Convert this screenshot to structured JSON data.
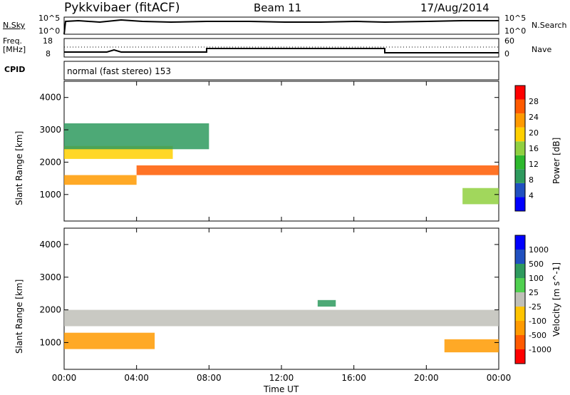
{
  "header": {
    "station": "Pykkvibaer (fitACF)",
    "beam": "Beam 11",
    "date": "17/Aug/2014"
  },
  "nsky_panel": {
    "label": "N.Sky",
    "tick_high": "10^5",
    "tick_low": "10^0",
    "right_label": "N.Search",
    "right_tick_high": "10^5",
    "right_tick_low": "10^0"
  },
  "freq_panel": {
    "label_line1": "Freq.",
    "label_line2": "[MHz]",
    "tick_high": "18",
    "tick_low": "8",
    "right_label": "Nave",
    "right_tick_high": "60",
    "right_tick_low": "0"
  },
  "cpid_panel": {
    "label": "CPID",
    "mode": "normal (fast stereo) 153"
  },
  "colors": {
    "colorbar_power": [
      "#0000ff",
      "#2050c0",
      "#2e9a5e",
      "#2db82d",
      "#90d040",
      "#ffd000",
      "#ff9a00",
      "#ff5a00",
      "#ff0000"
    ],
    "colorbar_velocity": [
      "#ff0000",
      "#ff5a00",
      "#ff9a00",
      "#ffc400",
      "#c0c0b8",
      "#50d050",
      "#2e9a5e",
      "#2050c0",
      "#0000ff"
    ]
  },
  "chart_data": [
    {
      "type": "heatmap",
      "name": "power",
      "ylabel": "Slant Range [km]",
      "ylim": [
        180,
        4500
      ],
      "yticks": [
        "1000",
        "2000",
        "3000",
        "4000"
      ],
      "xlim": [
        0,
        24
      ],
      "colorbar_label": "Power [dB]",
      "colorbar_ticks": [
        "4",
        "8",
        "12",
        "16",
        "20",
        "24",
        "28"
      ],
      "colorbar_range": [
        0,
        32
      ],
      "bands": [
        {
          "range_km": [
            1600,
            1900
          ],
          "value_db": 27,
          "hours": [
            4,
            24
          ]
        },
        {
          "range_km": [
            1300,
            1600
          ],
          "value_db": 22,
          "hours": [
            0,
            4
          ]
        },
        {
          "range_km": [
            2100,
            2500
          ],
          "value_db": 18,
          "hours": [
            0,
            6
          ]
        },
        {
          "range_km": [
            700,
            1200
          ],
          "value_db": 15,
          "hours": [
            22,
            24
          ]
        },
        {
          "range_km": [
            2400,
            3200
          ],
          "value_db": 8,
          "hours": [
            0,
            8
          ]
        }
      ]
    },
    {
      "type": "heatmap",
      "name": "velocity",
      "ylabel": "Slant Range [km]",
      "ylim": [
        180,
        4500
      ],
      "yticks": [
        "1000",
        "2000",
        "3000",
        "4000"
      ],
      "xlim": [
        0,
        24
      ],
      "xticks": [
        "00:00",
        "04:00",
        "08:00",
        "12:00",
        "16:00",
        "20:00",
        "00:00"
      ],
      "xlabel": "Time UT",
      "colorbar_label": "Velocity [m s^-1]",
      "colorbar_ticks": [
        "-1000",
        "-500",
        "-100",
        "-25",
        "25",
        "100",
        "500",
        "1000"
      ],
      "bands": [
        {
          "range_km": [
            1500,
            2000
          ],
          "value_ms": 0,
          "hours": [
            0,
            24
          ]
        },
        {
          "range_km": [
            800,
            1300
          ],
          "value_ms": -300,
          "hours": [
            0,
            5
          ]
        },
        {
          "range_km": [
            2100,
            2300
          ],
          "value_ms": 200,
          "hours": [
            14,
            15
          ]
        },
        {
          "range_km": [
            700,
            1100
          ],
          "value_ms": -200,
          "hours": [
            21,
            24
          ]
        }
      ]
    }
  ]
}
